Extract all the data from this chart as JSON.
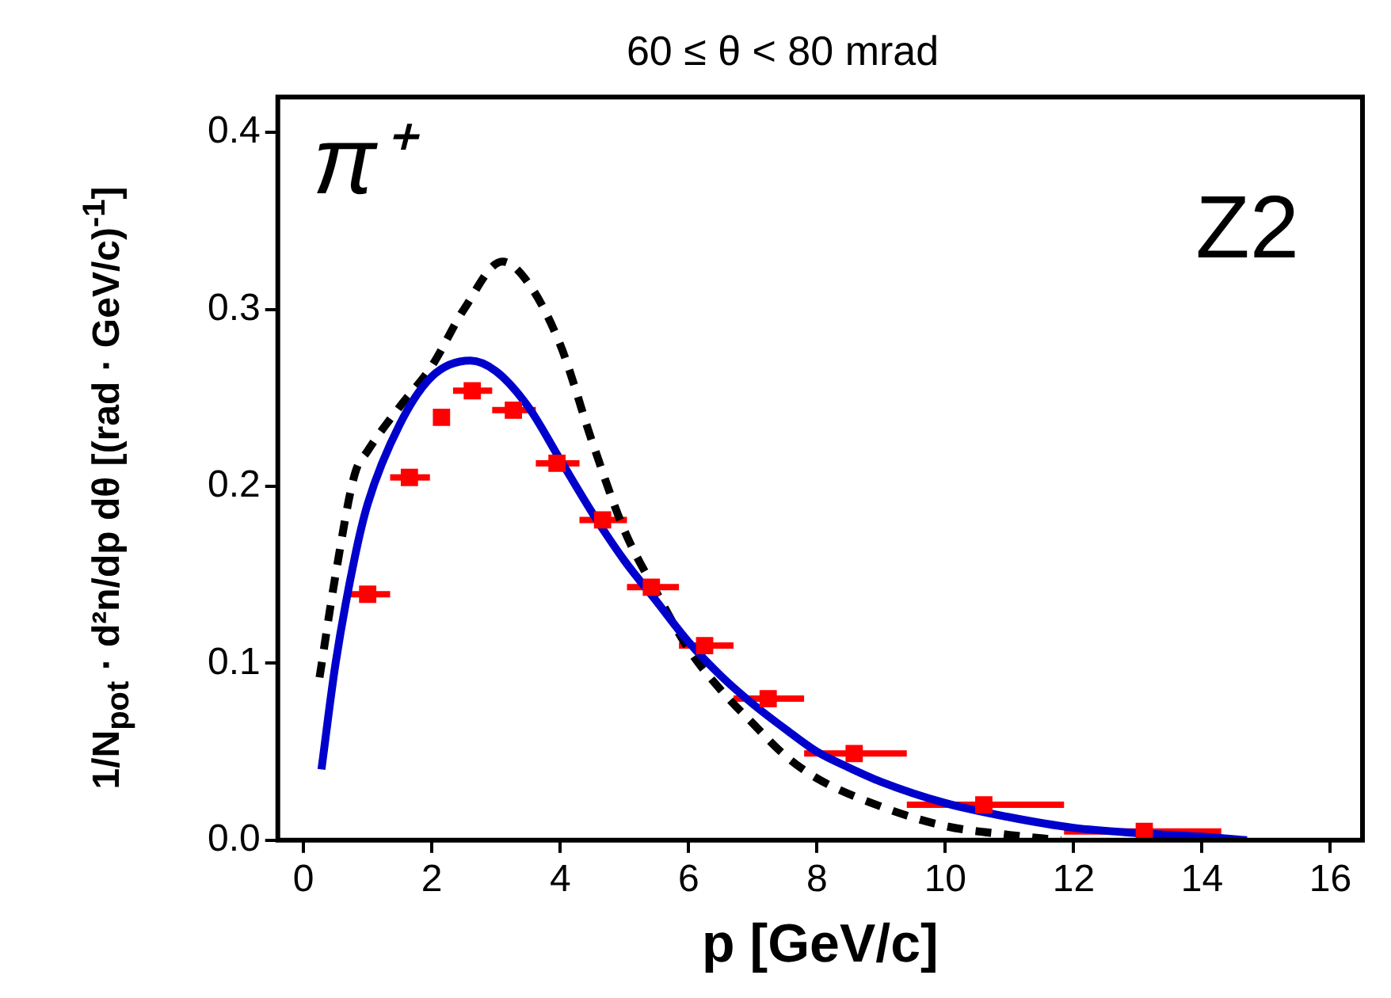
{
  "chart_data": {
    "type": "scatter",
    "title": "60 ≤ θ < 80 mrad",
    "xlabel": "p [GeV/c]",
    "ylabel": "1/N$_{pot}$ · d²n/dp dθ [(rad · GeV/c)$^{-1}$]",
    "annotations": [
      "π⁺",
      "Z2"
    ],
    "xlim": [
      -0.4,
      16.5
    ],
    "xticks": [
      0,
      2,
      4,
      6,
      8,
      10,
      12,
      14,
      16
    ],
    "ylim": [
      0,
      0.42
    ],
    "yticks": [
      {
        "value": 0,
        "label": "0.0"
      },
      0.1,
      0.2,
      0.3,
      0.4
    ],
    "grid": false,
    "legend": false,
    "series": [
      {
        "type": "line",
        "color": "#0000cc",
        "line_style": "solid",
        "marker": "none",
        "x": [
          0.28,
          0.5,
          0.8,
          1.0,
          1.5,
          2.0,
          2.6,
          3.0,
          3.5,
          4.0,
          4.5,
          5.0,
          5.5,
          6.0,
          6.5,
          7.0,
          7.5,
          8.0,
          8.5,
          9.0,
          10.0,
          11.0,
          12.0,
          13.0,
          14.0,
          14.7
        ],
        "values": [
          0.04,
          0.1,
          0.16,
          0.19,
          0.235,
          0.262,
          0.271,
          0.265,
          0.245,
          0.215,
          0.185,
          0.158,
          0.135,
          0.112,
          0.093,
          0.077,
          0.063,
          0.05,
          0.041,
          0.033,
          0.021,
          0.013,
          0.007,
          0.004,
          0.002,
          0.0
        ]
      },
      {
        "type": "line",
        "color": "#000000",
        "line_style": "dashed",
        "marker": "none",
        "x": [
          0.25,
          0.5,
          0.8,
          1.0,
          1.5,
          2.0,
          2.5,
          3.1,
          3.5,
          4.0,
          4.5,
          5.0,
          5.5,
          6.0,
          6.5,
          7.0,
          7.5,
          8.0,
          9.0,
          10.0,
          11.0,
          11.8
        ],
        "values": [
          0.092,
          0.15,
          0.207,
          0.22,
          0.245,
          0.268,
          0.3,
          0.327,
          0.315,
          0.28,
          0.225,
          0.175,
          0.14,
          0.108,
          0.085,
          0.066,
          0.048,
          0.035,
          0.019,
          0.008,
          0.003,
          0.0
        ]
      },
      {
        "type": "scatter",
        "color": "#ff0000",
        "marker": "square",
        "x": [
          1.0,
          1.65,
          2.15,
          2.63,
          3.27,
          3.95,
          4.66,
          5.42,
          6.25,
          7.24,
          8.58,
          10.6,
          13.1
        ],
        "values": [
          0.139,
          0.205,
          0.239,
          0.254,
          0.243,
          0.213,
          0.181,
          0.143,
          0.11,
          0.08,
          0.049,
          0.02,
          0.005
        ],
        "xerrors": [
          [
            0.7,
            1.35
          ],
          [
            1.35,
            1.97
          ],
          null,
          [
            2.33,
            2.94
          ],
          [
            2.94,
            3.62
          ],
          [
            3.62,
            4.3
          ],
          [
            4.3,
            5.04
          ],
          [
            5.04,
            5.85
          ],
          [
            5.85,
            6.7
          ],
          [
            6.7,
            7.8
          ],
          [
            7.8,
            9.4
          ],
          [
            9.4,
            11.85
          ],
          [
            11.85,
            14.3
          ]
        ]
      }
    ]
  }
}
